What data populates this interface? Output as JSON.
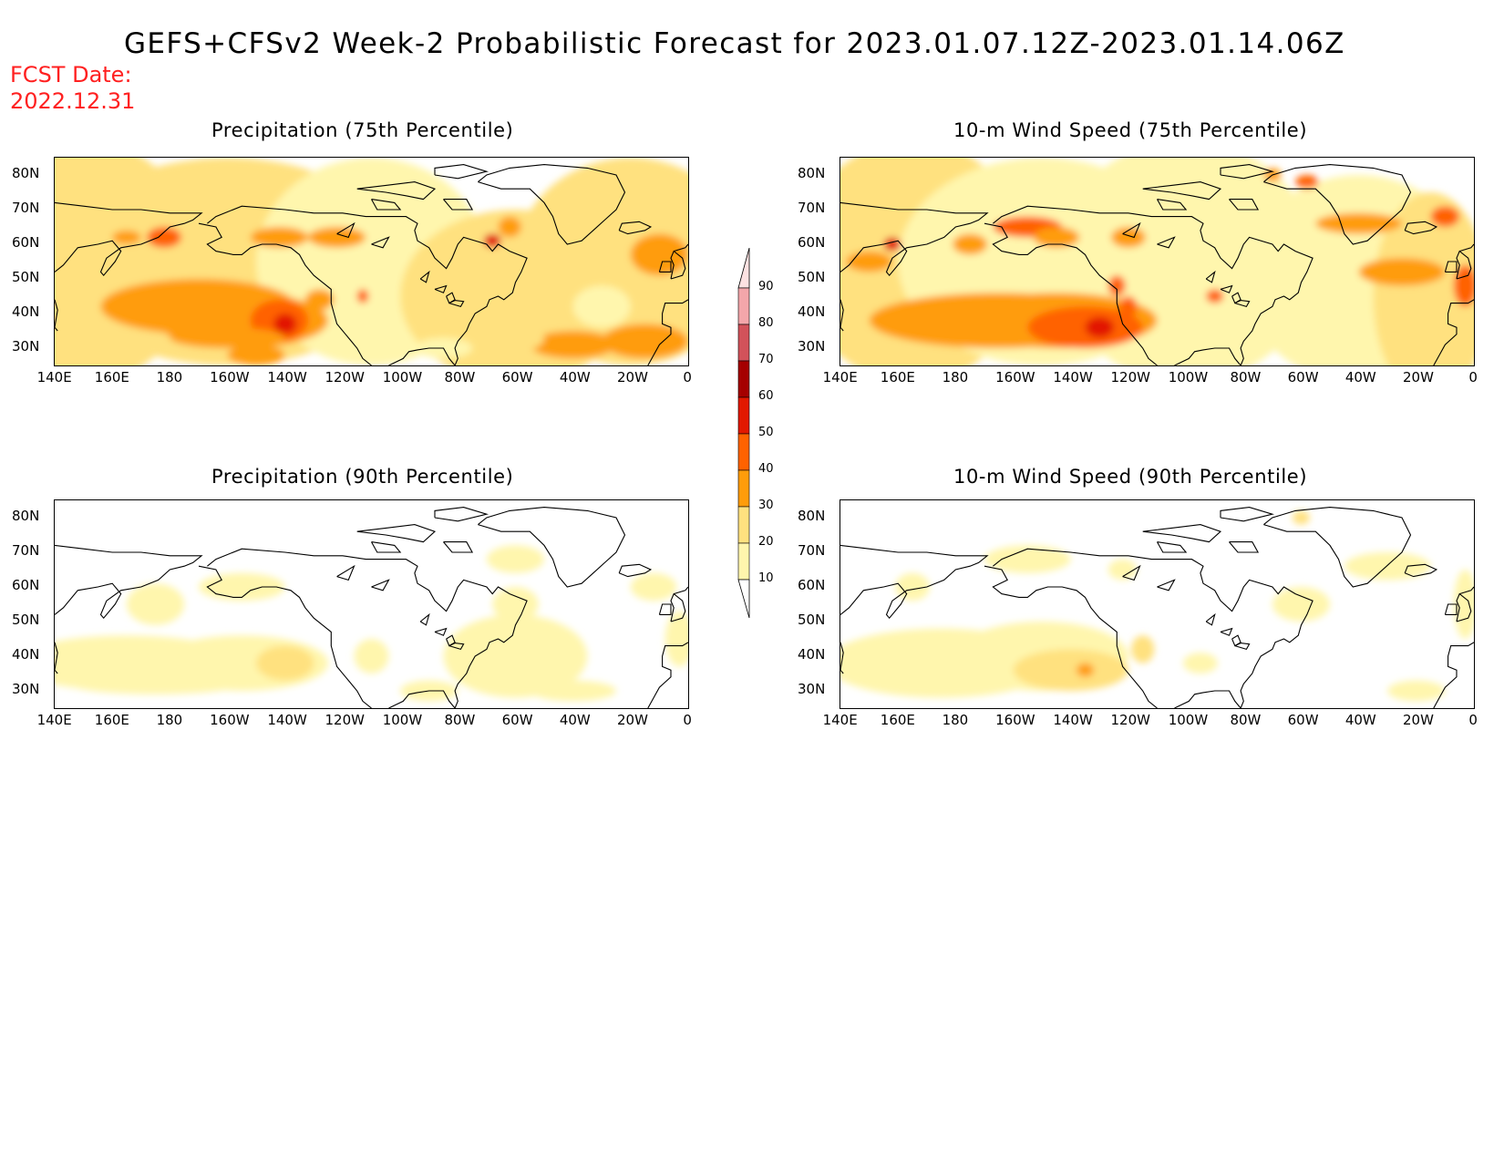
{
  "header": {
    "title": "GEFS+CFSv2 Week-2 Probabilistic Forecast for 2023.01.07.12Z-2023.01.14.06Z",
    "fcst_label": "FCST Date:",
    "fcst_date": "2022.12.31"
  },
  "panels": [
    {
      "title": "Precipitation (75th Percentile)",
      "variable": "precipitation",
      "percentile": 75
    },
    {
      "title": "10-m Wind Speed (75th Percentile)",
      "variable": "wind",
      "percentile": 75
    },
    {
      "title": "Precipitation (90th Percentile)",
      "variable": "precipitation",
      "percentile": 90
    },
    {
      "title": "10-m Wind Speed (90th Percentile)",
      "variable": "wind",
      "percentile": 90
    }
  ],
  "axes": {
    "lat_labels": [
      "80N",
      "70N",
      "60N",
      "50N",
      "40N",
      "30N"
    ],
    "lat_values": [
      80,
      70,
      60,
      50,
      40,
      30
    ],
    "lat_range": [
      25,
      85
    ],
    "lon_labels": [
      "140E",
      "160E",
      "180",
      "160W",
      "140W",
      "120W",
      "100W",
      "80W",
      "60W",
      "40W",
      "20W",
      "0"
    ],
    "lon_values": [
      140,
      160,
      180,
      200,
      220,
      240,
      260,
      280,
      300,
      320,
      340,
      360
    ],
    "lon_range": [
      140,
      360
    ]
  },
  "legend": {
    "levels": [
      "10",
      "20",
      "30",
      "40",
      "50",
      "60",
      "70",
      "80",
      "90"
    ],
    "colors": [
      "#ffffff",
      "#fff6ad",
      "#ffe17f",
      "#ff9c0a",
      "#ff6200",
      "#e21800",
      "#a50000",
      "#d2525a",
      "#f3a6aa",
      "#fde2e2"
    ]
  },
  "colors": {
    "land_outline": "#000000",
    "fcst_date_text": "#ff2020"
  }
}
